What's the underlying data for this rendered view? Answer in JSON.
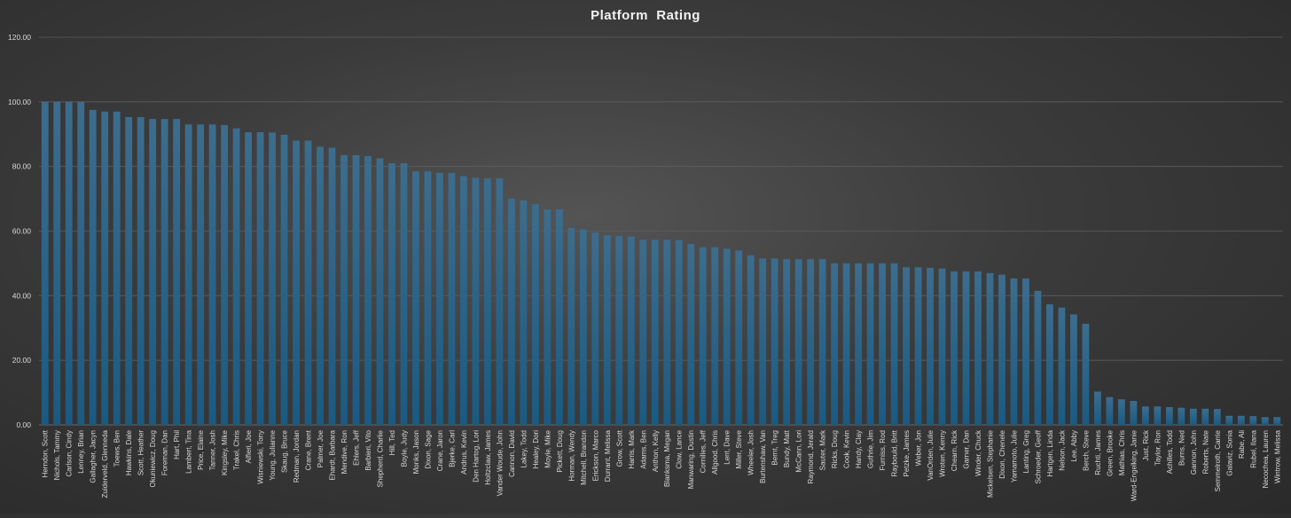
{
  "chart_data": {
    "type": "bar",
    "title": "Platform  Rating",
    "xlabel": "",
    "ylabel": "",
    "ylim": [
      0,
      120
    ],
    "yticks": [
      "0.00",
      "20.00",
      "40.00",
      "60.00",
      "80.00",
      "100.00",
      "120.00"
    ],
    "grid": true,
    "legend": "none",
    "colors": {
      "bar": "#1f5f86",
      "grid": "#5e5e5e",
      "text": "#d9d9d9"
    },
    "categories": [
      "Herndon, Scott",
      "Nichols, Tammy",
      "Carlson, Cindy",
      "Lenney, Brian",
      "Gallagher, Jacyn",
      "Zuiderveld, Glenneda",
      "Toews, Ben",
      "Hawkins, Dale",
      "Scott, Heather",
      "Okuniewicz, Doug",
      "Foreman, Dan",
      "Hart, Phil",
      "Lambert, Tina",
      "Price, Elaine",
      "Tanner, Josh",
      "Kingsley, Mike",
      "Trakel, Chris",
      "Alfieri, Joe",
      "Wisniewski, Tony",
      "Young, Julianne",
      "Skaug, Bruce",
      "Redman, Jordan",
      "Crane, Brent",
      "Palmer, Joe",
      "Ehardt, Barbara",
      "Mendive, Ron",
      "Ehlers, Jeff",
      "Barbieri, Vito",
      "Shepherd, Charlie",
      "Hill, Ted",
      "Boyle, Judy",
      "Monks, Jason",
      "Dixon, Sage",
      "Crane, Jaron",
      "Bjerke, Carl",
      "Andrus, Kevin",
      "Den Hartog, Lori",
      "Holtzclaw, James",
      "Vander Woude, John",
      "Cannon, David",
      "Lakey, Todd",
      "Healey, Dori",
      "Moyle, Mike",
      "Pickett, Doug",
      "Horman, Wendy",
      "Mitchell, Brandon",
      "Erickson, Marco",
      "Durrant, Melissa",
      "Grow, Scott",
      "Harris, Mark",
      "Adams, Ben",
      "Anthon, Kelly",
      "Blanksma, Megan",
      "Clow, Lance",
      "Manwaring, Dustin",
      "Cornilles, Jeff",
      "Allgood, Chris",
      "Lent, Dave",
      "Miller, Steve",
      "Wheeler, Josh",
      "Burtenshaw, Van",
      "Bernt, Treg",
      "Bundy, Matt",
      "McCann, Lori",
      "Raymond, Jerald",
      "Sauter, Mark",
      "Ricks, Doug",
      "Cook, Kevin",
      "Handy, Clay",
      "Guthrie, Jim",
      "Furniss, Rod",
      "Raybould, Britt",
      "Petzke, James",
      "Weber, Jon",
      "VanOrden, Julie",
      "Wroten, Kenny",
      "Chearn, Rick",
      "Garner, Dan",
      "Winder, Chuck",
      "Mickelsen, Stephanie",
      "Dixon, Chenele",
      "Yamamoto, Julie",
      "Lanting, Greg",
      "Schroeder, Geoff",
      "Hartgen, Linda",
      "Nelson, Jack",
      "Lee, Abby",
      "Berch, Steve",
      "Ruchti, James",
      "Green, Brooke",
      "Mathias, Chris",
      "Ward-Engelking, Janie",
      "Just, Rick",
      "Taylor, Ron",
      "Achilles, Todd",
      "Burns, Ned",
      "Gannon, John",
      "Roberts, Nate",
      "Semmelroth, Carrie",
      "Galaviz, Sonia",
      "Rabe, Ali",
      "Rubel, Ilana",
      "Necochea, Lauren",
      "Wintrow, Melissa"
    ],
    "values": [
      100,
      100,
      100,
      100,
      97.5,
      97,
      97,
      95.3,
      95.3,
      94.7,
      94.7,
      94.7,
      93,
      93,
      93,
      92.8,
      91.8,
      90.6,
      90.6,
      90.5,
      89.8,
      88,
      88,
      86.1,
      85.8,
      83.5,
      83.5,
      83.2,
      82.5,
      81,
      81,
      78.5,
      78.5,
      78,
      78,
      77,
      76.5,
      76.3,
      76.3,
      70,
      69.5,
      68.3,
      66.7,
      66.7,
      61,
      60.5,
      59.5,
      58.7,
      58.5,
      58.3,
      57.3,
      57.3,
      57.3,
      57.2,
      56,
      55,
      55,
      54.5,
      54,
      52.5,
      51.5,
      51.5,
      51.3,
      51.3,
      51.3,
      51.3,
      50,
      50,
      50,
      50,
      50,
      50,
      48.8,
      48.8,
      48.6,
      48.4,
      47.5,
      47.5,
      47.5,
      47,
      46.5,
      45.3,
      45.3,
      41.5,
      37.3,
      36.3,
      34.2,
      31.3,
      10.3,
      8.6,
      7.9,
      7.4,
      5.7,
      5.7,
      5.5,
      5.3,
      5,
      5,
      4.9,
      2.8,
      2.8,
      2.7,
      2.4,
      2.4
    ]
  }
}
